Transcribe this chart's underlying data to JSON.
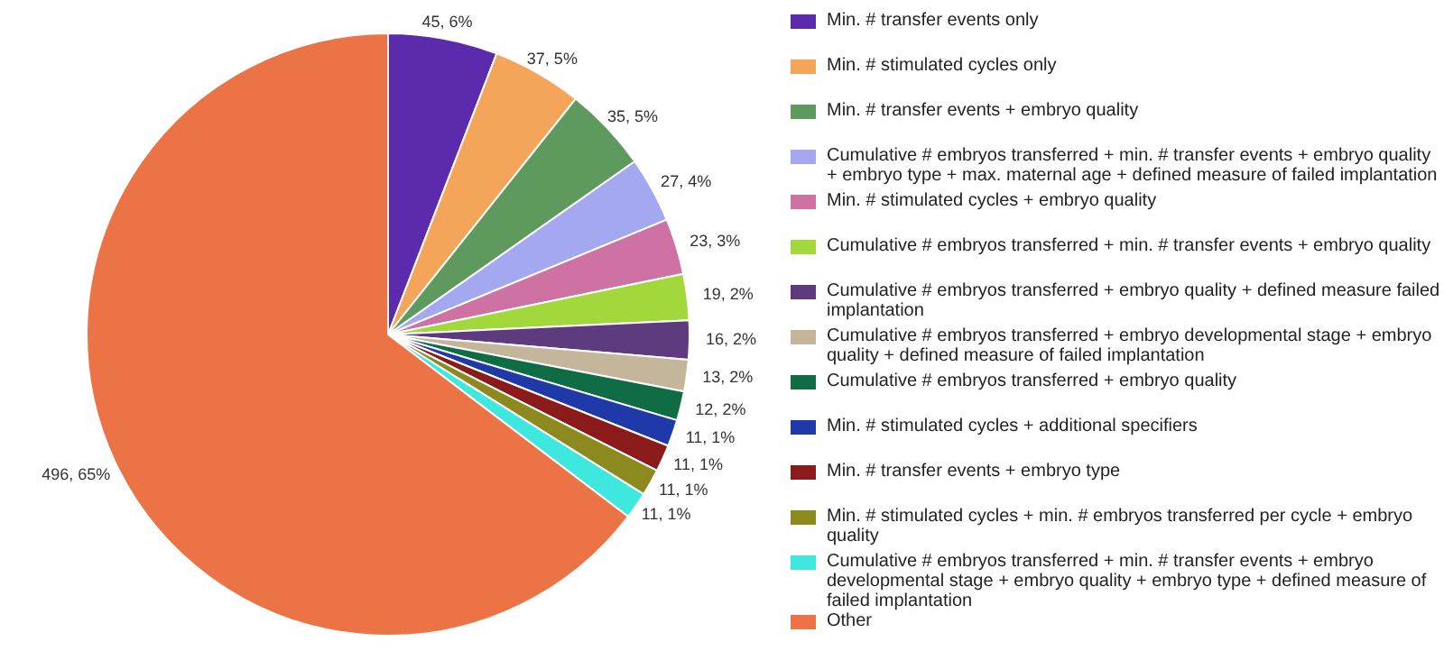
{
  "chart_data": {
    "type": "pie",
    "categories": [
      "Min. # transfer events only",
      "Min. # stimulated cycles only",
      "Min. # transfer events + embryo quality",
      "Cumulative # embryos transferred + min. # transfer events + embryo quality + embryo type + max. maternal age + defined measure of failed implantation",
      "Min. # stimulated cycles + embryo quality",
      "Cumulative # embryos transferred + min. # transfer events + embryo quality",
      "Cumulative # embryos transferred + embryo quality + defined measure failed implantation",
      "Cumulative # embryos transferred + embryo developmental stage + embryo quality + defined measure of failed implantation",
      "Cumulative # embryos transferred + embryo quality",
      "Min. # stimulated cycles + additional specifiers",
      "Min. # transfer events + embryo type",
      "Min. # stimulated cycles + min. # embryos transferred per cycle + embryo quality",
      "Cumulative # embryos transferred + min. # transfer events + embryo developmental stage + embryo quality + embryo type + defined measure of failed implantation",
      "Other"
    ],
    "values": [
      45,
      37,
      35,
      27,
      23,
      19,
      16,
      13,
      12,
      11,
      11,
      11,
      11,
      496
    ],
    "value_labels": [
      "45, 6%",
      "37, 5%",
      "35, 5%",
      "27, 4%",
      "23, 3%",
      "19, 2%",
      "16, 2%",
      "13, 2%",
      "12, 2%",
      "11, 1%",
      "11, 1%",
      "11, 1%",
      "11, 1%",
      "496, 65%"
    ],
    "colors": [
      "#5b2aad",
      "#f5a55a",
      "#5e9a5e",
      "#a3a8f0",
      "#cd72a3",
      "#a3d83d",
      "#5e3a7e",
      "#c4b69a",
      "#106c44",
      "#2039a8",
      "#8b1a1a",
      "#8c8a1e",
      "#3ee8de",
      "#ec7346"
    ],
    "legend": "right"
  }
}
